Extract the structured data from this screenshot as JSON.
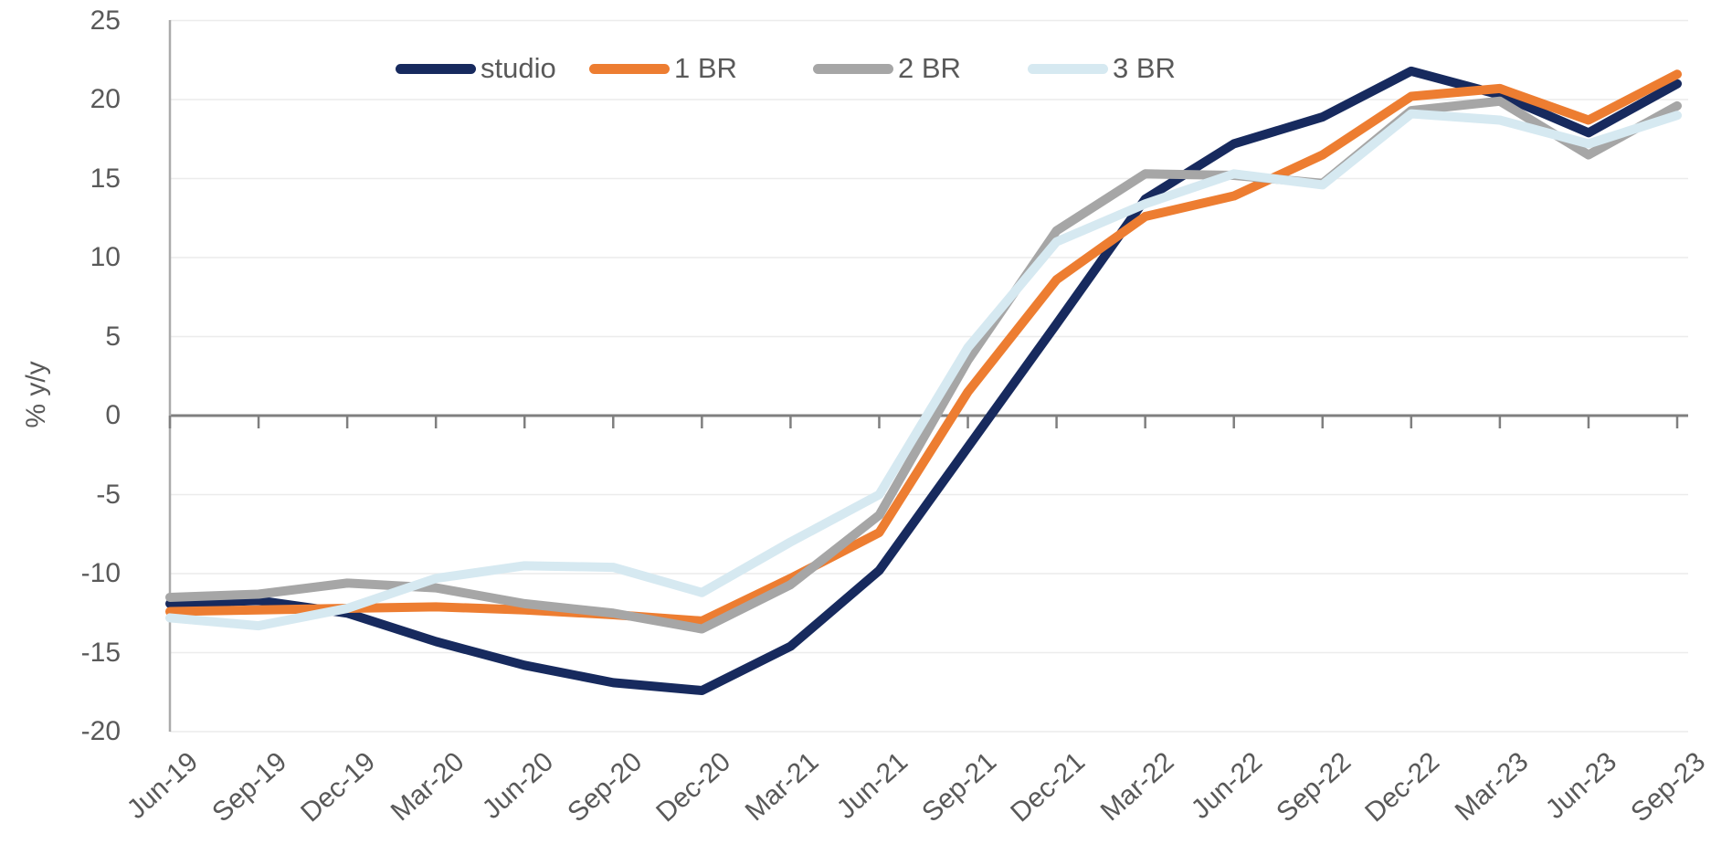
{
  "chart_data": {
    "type": "line",
    "ylabel": "% y/y",
    "ylim": [
      -20,
      25
    ],
    "ytick_step": 5,
    "yticks": [
      25,
      20,
      15,
      10,
      5,
      0,
      -5,
      -10,
      -15,
      -20
    ],
    "grid": "horizontal-faint",
    "legend_position": "top-center",
    "categories": [
      "Jun-19",
      "Sep-19",
      "Dec-19",
      "Mar-20",
      "Jun-20",
      "Sep-20",
      "Dec-20",
      "Mar-21",
      "Jun-21",
      "Sep-21",
      "Dec-21",
      "Mar-22",
      "Jun-22",
      "Sep-22",
      "Dec-22",
      "Mar-23",
      "Jun-23",
      "Sep-23"
    ],
    "series": [
      {
        "name": "studio",
        "color": "#172A5E",
        "values": [
          -11.9,
          -11.7,
          -12.5,
          -14.3,
          -15.8,
          -16.9,
          -17.4,
          -14.6,
          -9.8,
          -2.0,
          5.8,
          13.7,
          17.2,
          18.9,
          21.8,
          20.3,
          17.9,
          21.0
        ]
      },
      {
        "name": "1 BR",
        "color": "#ED7D31",
        "values": [
          -12.4,
          -12.3,
          -12.2,
          -12.1,
          -12.3,
          -12.6,
          -13.0,
          -10.3,
          -7.4,
          1.5,
          8.6,
          12.6,
          13.9,
          16.5,
          20.2,
          20.7,
          18.7,
          21.6
        ]
      },
      {
        "name": "2 BR",
        "color": "#A6A6A6",
        "values": [
          -11.5,
          -11.3,
          -10.6,
          -10.9,
          -11.9,
          -12.5,
          -13.5,
          -10.7,
          -6.3,
          3.5,
          11.7,
          15.3,
          15.2,
          14.7,
          19.3,
          19.9,
          16.5,
          19.6
        ]
      },
      {
        "name": "3 BR",
        "color": "#D6E9F1",
        "values": [
          -12.8,
          -13.3,
          -12.2,
          -10.3,
          -9.5,
          -9.6,
          -11.2,
          -8.0,
          -5.0,
          4.3,
          11.0,
          13.4,
          15.3,
          14.6,
          19.1,
          18.7,
          17.2,
          19.0
        ]
      }
    ]
  },
  "style": {
    "axis_text_color": "#595959",
    "zero_line_color": "#7F7F7F",
    "y_axis_line_color": "#ABABAB",
    "gridline_color": "#ECECEC",
    "line_width": 10
  }
}
